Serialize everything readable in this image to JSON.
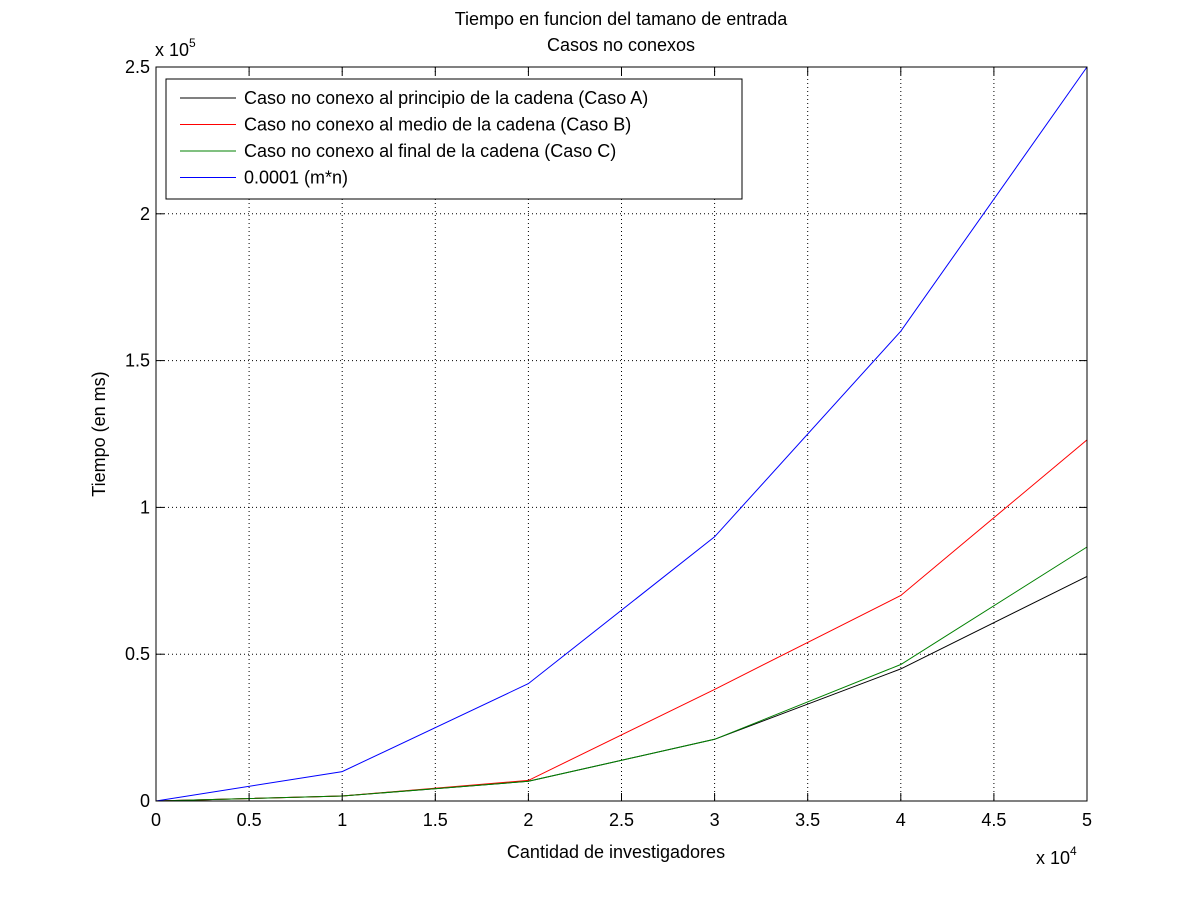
{
  "chart_data": {
    "type": "line",
    "title": [
      "Tiempo en funcion del tamano de entrada",
      "Casos no conexos"
    ],
    "xlabel": "Cantidad de investigadores",
    "ylabel": "Tiempo (en ms)",
    "x_exponent_label": "x 10",
    "x_exponent": "4",
    "y_exponent_label": "x 10",
    "y_exponent": "5",
    "xlim": [
      0,
      50000
    ],
    "ylim": [
      0,
      250000
    ],
    "xticks": [
      0,
      5000,
      10000,
      15000,
      20000,
      25000,
      30000,
      35000,
      40000,
      45000,
      50000
    ],
    "xtick_labels": [
      "0",
      "0.5",
      "1",
      "1.5",
      "2",
      "2.5",
      "3",
      "3.5",
      "4",
      "4.5",
      "5"
    ],
    "yticks": [
      0,
      50000,
      100000,
      150000,
      200000,
      250000
    ],
    "ytick_labels": [
      "0",
      "0.5",
      "1",
      "1.5",
      "2",
      "2.5"
    ],
    "grid": true,
    "legend_position": "top-left",
    "x": [
      0,
      10000,
      20000,
      30000,
      40000,
      50000
    ],
    "series": [
      {
        "name": "Caso no conexo al principio de la cadena (Caso A)",
        "color": "#000000",
        "values": [
          0,
          1700,
          6700,
          21000,
          45000,
          76500
        ]
      },
      {
        "name": "Caso no conexo al medio de la cadena (Caso B)",
        "color": "#ff0000",
        "values": [
          0,
          1700,
          7000,
          38000,
          70000,
          123000
        ]
      },
      {
        "name": "Caso no conexo al final de la cadena (Caso C)",
        "color": "#008000",
        "values": [
          0,
          1700,
          6700,
          21000,
          46500,
          86500
        ]
      },
      {
        "name": "0.0001 (m*n)",
        "color": "#0000ff",
        "values": [
          0,
          10000,
          40000,
          90000,
          160000,
          250000
        ]
      }
    ]
  }
}
